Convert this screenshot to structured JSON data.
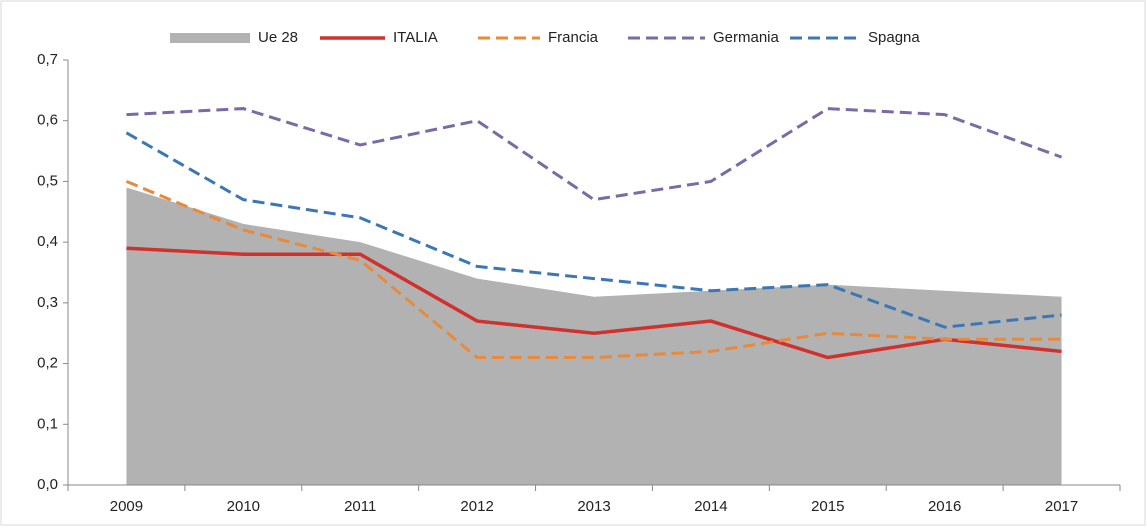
{
  "chart_data": {
    "type": "line",
    "categories": [
      "2009",
      "2010",
      "2011",
      "2012",
      "2013",
      "2014",
      "2015",
      "2016",
      "2017"
    ],
    "series": [
      {
        "name": "Ue 28",
        "type": "area",
        "color": "#b2b2b2",
        "values": [
          0.49,
          0.43,
          0.4,
          0.34,
          0.31,
          0.32,
          0.33,
          0.32,
          0.31
        ]
      },
      {
        "name": "ITALIA",
        "type": "line",
        "color": "#d0312d",
        "dashed": false,
        "values": [
          0.39,
          0.38,
          0.38,
          0.27,
          0.25,
          0.27,
          0.21,
          0.24,
          0.22
        ]
      },
      {
        "name": "Francia",
        "type": "line",
        "color": "#e8893b",
        "dashed": true,
        "values": [
          0.5,
          0.42,
          0.37,
          0.21,
          0.21,
          0.22,
          0.25,
          0.24,
          0.24
        ]
      },
      {
        "name": "Germania",
        "type": "line",
        "color": "#7b6aa6",
        "dashed": true,
        "values": [
          0.61,
          0.62,
          0.56,
          0.6,
          0.47,
          0.5,
          0.62,
          0.61,
          0.54
        ]
      },
      {
        "name": "Spagna",
        "type": "line",
        "color": "#3c77b5",
        "dashed": true,
        "values": [
          0.58,
          0.47,
          0.44,
          0.36,
          0.34,
          0.32,
          0.33,
          0.26,
          0.28
        ]
      }
    ],
    "ylim": [
      0,
      0.7
    ],
    "yticks": [
      {
        "value": 0,
        "label": "0,0"
      },
      {
        "value": 0.1,
        "label": "0,1"
      },
      {
        "value": 0.2,
        "label": "0,2"
      },
      {
        "value": 0.3,
        "label": "0,3"
      },
      {
        "value": 0.4,
        "label": "0,4"
      },
      {
        "value": 0.5,
        "label": "0,5"
      },
      {
        "value": 0.6,
        "label": "0,6"
      },
      {
        "value": 0.7,
        "label": "0,7"
      }
    ],
    "legend": "top"
  }
}
